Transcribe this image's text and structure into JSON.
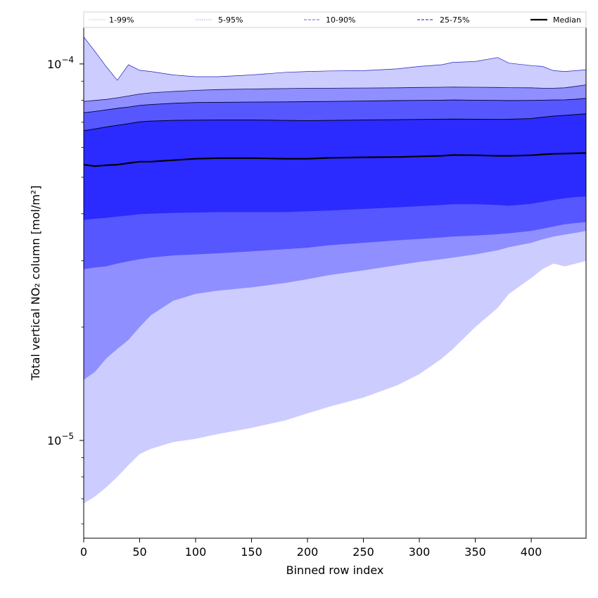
{
  "chart_data": {
    "type": "area",
    "title": "",
    "xlabel": "Binned row index",
    "ylabel": "Total vertical NO₂ column [mol/m²]",
    "y_scale": "log",
    "xlim": [
      0,
      449
    ],
    "ylim": [
      5.5e-06,
      0.000125
    ],
    "x_ticks": [
      0,
      50,
      100,
      150,
      200,
      250,
      300,
      350,
      400
    ],
    "y_ticks": [
      {
        "value": 0.0001,
        "mantissa": "10",
        "exponent": "−4"
      },
      {
        "value": 1e-05,
        "mantissa": "10",
        "exponent": "−5"
      }
    ],
    "grid": false,
    "legend_position": "top (above plot, single row)",
    "legend": [
      {
        "label": "1-99%",
        "style": "solid-thin",
        "color": "#dcdcf5"
      },
      {
        "label": "5-95%",
        "style": "dotted",
        "color": "#a0a0f0"
      },
      {
        "label": "10-90%",
        "style": "dashed",
        "color": "#8080f0"
      },
      {
        "label": "25-75%",
        "style": "dashed",
        "color": "#4040e0"
      },
      {
        "label": "Median",
        "style": "solid-thick",
        "color": "#000000"
      }
    ],
    "colors": {
      "band_1_99": "#ccccff",
      "band_5_95": "#8f8fff",
      "band_10_90": "#5757ff",
      "band_25_75": "#2b2bff",
      "median": "#000000"
    },
    "x": [
      0,
      10,
      20,
      30,
      40,
      50,
      60,
      80,
      100,
      120,
      150,
      180,
      200,
      220,
      250,
      280,
      300,
      320,
      330,
      350,
      370,
      380,
      400,
      410,
      420,
      430,
      440,
      449
    ],
    "series": [
      {
        "name": "p1",
        "values": [
          6.8e-06,
          7.1e-06,
          7.5e-06,
          8e-06,
          8.6e-06,
          9.2e-06,
          9.5e-06,
          9.9e-06,
          1.01e-05,
          1.04e-05,
          1.08e-05,
          1.13e-05,
          1.18e-05,
          1.23e-05,
          1.3e-05,
          1.4e-05,
          1.5e-05,
          1.65e-05,
          1.75e-05,
          2e-05,
          2.25e-05,
          2.45e-05,
          2.7e-05,
          2.85e-05,
          2.95e-05,
          2.9e-05,
          2.95e-05,
          3e-05
        ]
      },
      {
        "name": "p5",
        "values": [
          1.45e-05,
          1.52e-05,
          1.65e-05,
          1.75e-05,
          1.85e-05,
          2e-05,
          2.15e-05,
          2.35e-05,
          2.45e-05,
          2.5e-05,
          2.55e-05,
          2.62e-05,
          2.68e-05,
          2.75e-05,
          2.83e-05,
          2.92e-05,
          2.98e-05,
          3.03e-05,
          3.06e-05,
          3.12e-05,
          3.2e-05,
          3.26e-05,
          3.35e-05,
          3.42e-05,
          3.48e-05,
          3.52e-05,
          3.56e-05,
          3.6e-05
        ]
      },
      {
        "name": "p10",
        "values": [
          2.85e-05,
          2.88e-05,
          2.9e-05,
          2.95e-05,
          2.99e-05,
          3.03e-05,
          3.06e-05,
          3.1e-05,
          3.12e-05,
          3.14e-05,
          3.18e-05,
          3.22e-05,
          3.25e-05,
          3.3e-05,
          3.35e-05,
          3.4e-05,
          3.43e-05,
          3.46e-05,
          3.48e-05,
          3.5e-05,
          3.53e-05,
          3.55e-05,
          3.6e-05,
          3.65e-05,
          3.7e-05,
          3.75e-05,
          3.78e-05,
          3.8e-05
        ]
      },
      {
        "name": "p25",
        "values": [
          3.85e-05,
          3.88e-05,
          3.9e-05,
          3.93e-05,
          3.96e-05,
          3.99e-05,
          4e-05,
          4.02e-05,
          4.03e-05,
          4.04e-05,
          4.04e-05,
          4.04e-05,
          4.06e-05,
          4.08e-05,
          4.12e-05,
          4.16e-05,
          4.19e-05,
          4.22e-05,
          4.24e-05,
          4.24e-05,
          4.22e-05,
          4.2e-05,
          4.25e-05,
          4.3e-05,
          4.35e-05,
          4.4e-05,
          4.43e-05,
          4.45e-05
        ]
      },
      {
        "name": "Median",
        "values": [
          5.4e-05,
          5.35e-05,
          5.38e-05,
          5.4e-05,
          5.45e-05,
          5.5e-05,
          5.5e-05,
          5.55e-05,
          5.6e-05,
          5.62e-05,
          5.62e-05,
          5.6e-05,
          5.6e-05,
          5.63e-05,
          5.65e-05,
          5.66e-05,
          5.68e-05,
          5.7e-05,
          5.73e-05,
          5.72e-05,
          5.7e-05,
          5.7e-05,
          5.72e-05,
          5.75e-05,
          5.77e-05,
          5.78e-05,
          5.79e-05,
          5.8e-05
        ]
      },
      {
        "name": "p75",
        "values": [
          6.65e-05,
          6.72e-05,
          6.8e-05,
          6.87e-05,
          6.94e-05,
          7.02e-05,
          7.05e-05,
          7.08e-05,
          7.09e-05,
          7.1e-05,
          7.1e-05,
          7.08e-05,
          7.07e-05,
          7.08e-05,
          7.1e-05,
          7.11e-05,
          7.12e-05,
          7.13e-05,
          7.14e-05,
          7.13e-05,
          7.12e-05,
          7.13e-05,
          7.16e-05,
          7.22e-05,
          7.27e-05,
          7.3e-05,
          7.34e-05,
          7.37e-05
        ]
      },
      {
        "name": "p90",
        "values": [
          7.42e-05,
          7.48e-05,
          7.55e-05,
          7.62e-05,
          7.68e-05,
          7.76e-05,
          7.8e-05,
          7.86e-05,
          7.9e-05,
          7.91e-05,
          7.92e-05,
          7.93e-05,
          7.94e-05,
          7.95e-05,
          7.97e-05,
          7.99e-05,
          8e-05,
          8.01e-05,
          8.02e-05,
          8.01e-05,
          8e-05,
          7.99e-05,
          8e-05,
          8.01e-05,
          8.02e-05,
          8.03e-05,
          8.06e-05,
          8.1e-05
        ]
      },
      {
        "name": "p95",
        "values": [
          7.95e-05,
          8e-05,
          8.05e-05,
          8.13e-05,
          8.22e-05,
          8.32e-05,
          8.38e-05,
          8.45e-05,
          8.51e-05,
          8.55e-05,
          8.58e-05,
          8.6e-05,
          8.62e-05,
          8.62e-05,
          8.63e-05,
          8.64e-05,
          8.66e-05,
          8.67e-05,
          8.68e-05,
          8.67e-05,
          8.66e-05,
          8.65e-05,
          8.64e-05,
          8.62e-05,
          8.62e-05,
          8.64e-05,
          8.72e-05,
          8.8e-05
        ]
      },
      {
        "name": "p99",
        "values": [
          0.000118,
          0.000108,
          9.85e-05,
          9.05e-05,
          9.95e-05,
          9.62e-05,
          9.55e-05,
          9.35e-05,
          9.25e-05,
          9.25e-05,
          9.35e-05,
          9.5e-05,
          9.55e-05,
          9.58e-05,
          9.6e-05,
          9.7e-05,
          9.85e-05,
          9.95e-05,
          0.000101,
          0.0001015,
          0.000104,
          0.0001005,
          9.9e-05,
          9.85e-05,
          9.6e-05,
          9.55e-05,
          9.6e-05,
          9.65e-05
        ]
      }
    ]
  }
}
